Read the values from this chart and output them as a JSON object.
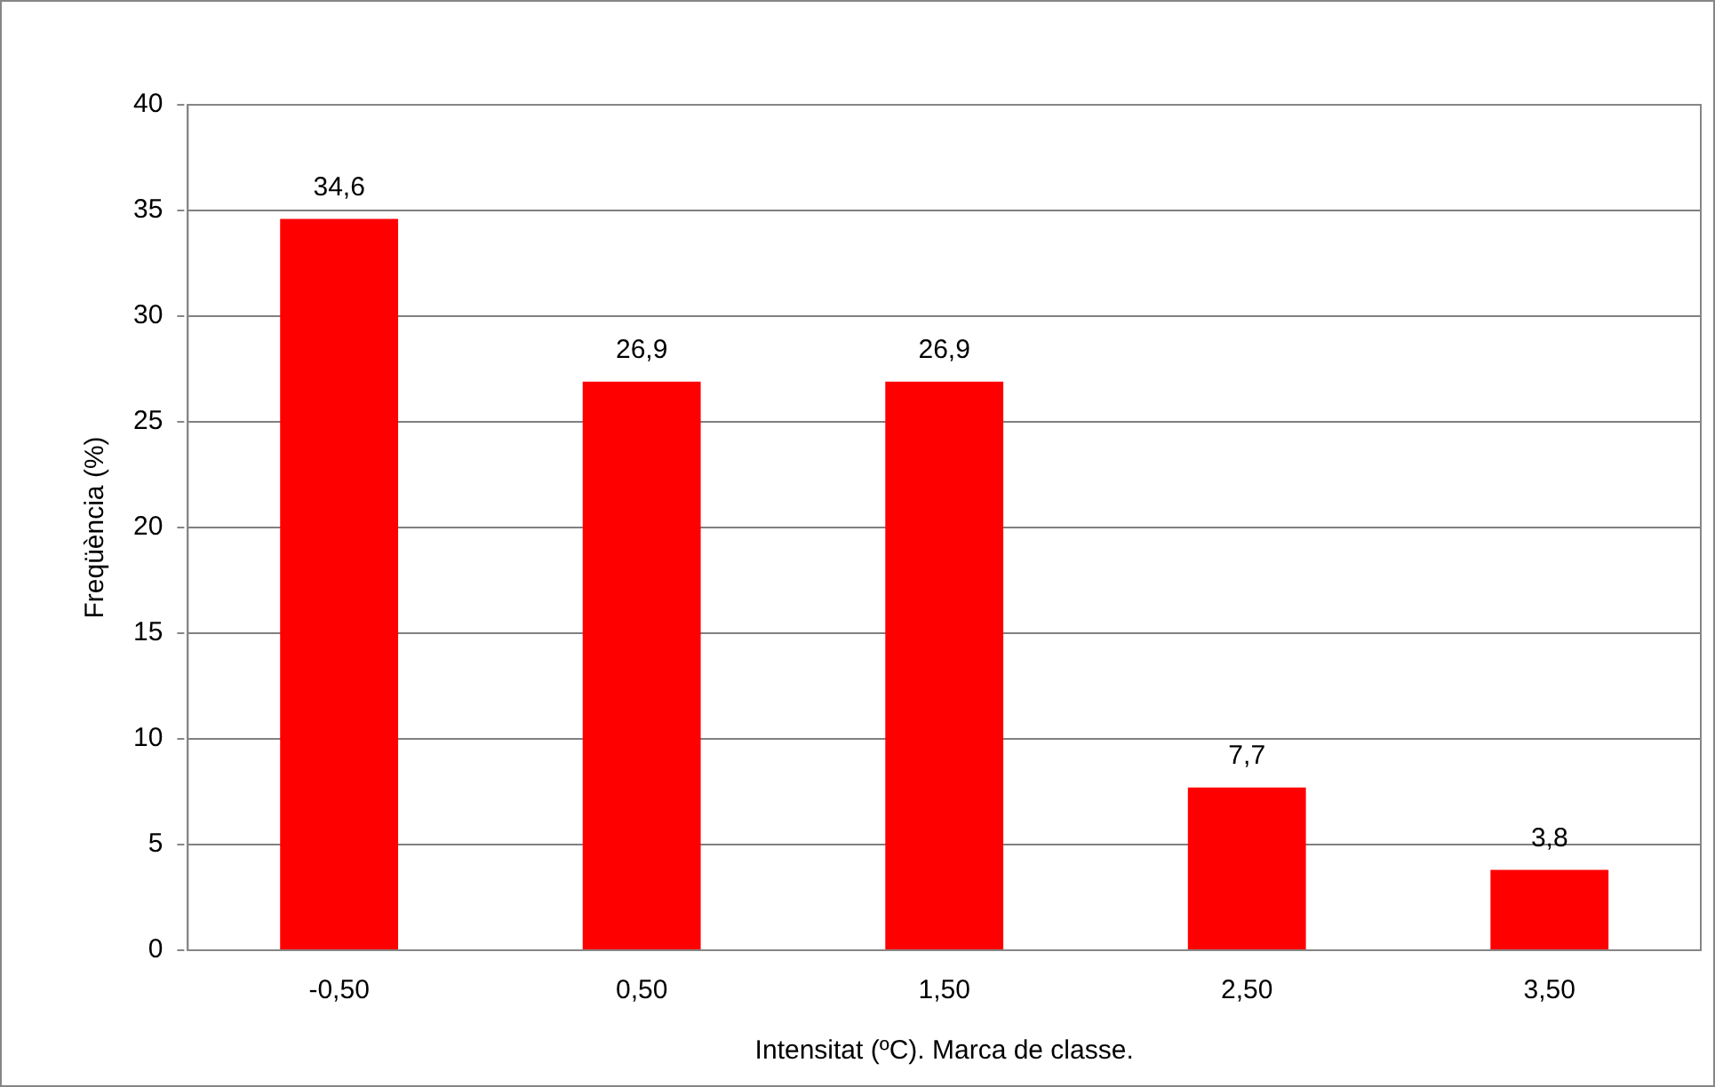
{
  "chart_data": {
    "type": "bar",
    "xlabel": "Intensitat (ºC). Marca de classe.",
    "ylabel": "Freqüència (%)",
    "categories": [
      "-0,50",
      "0,50",
      "1,50",
      "2,50",
      "3,50"
    ],
    "values": [
      34.6,
      26.9,
      26.9,
      7.7,
      3.8
    ],
    "value_labels": [
      "34,6",
      "26,9",
      "26,9",
      "7,7",
      "3,8"
    ],
    "color": "#ff0000",
    "ylim": [
      0,
      40
    ],
    "yticks": [
      0,
      5,
      10,
      15,
      20,
      25,
      30,
      35,
      40
    ],
    "grid": "y",
    "legend": false
  }
}
